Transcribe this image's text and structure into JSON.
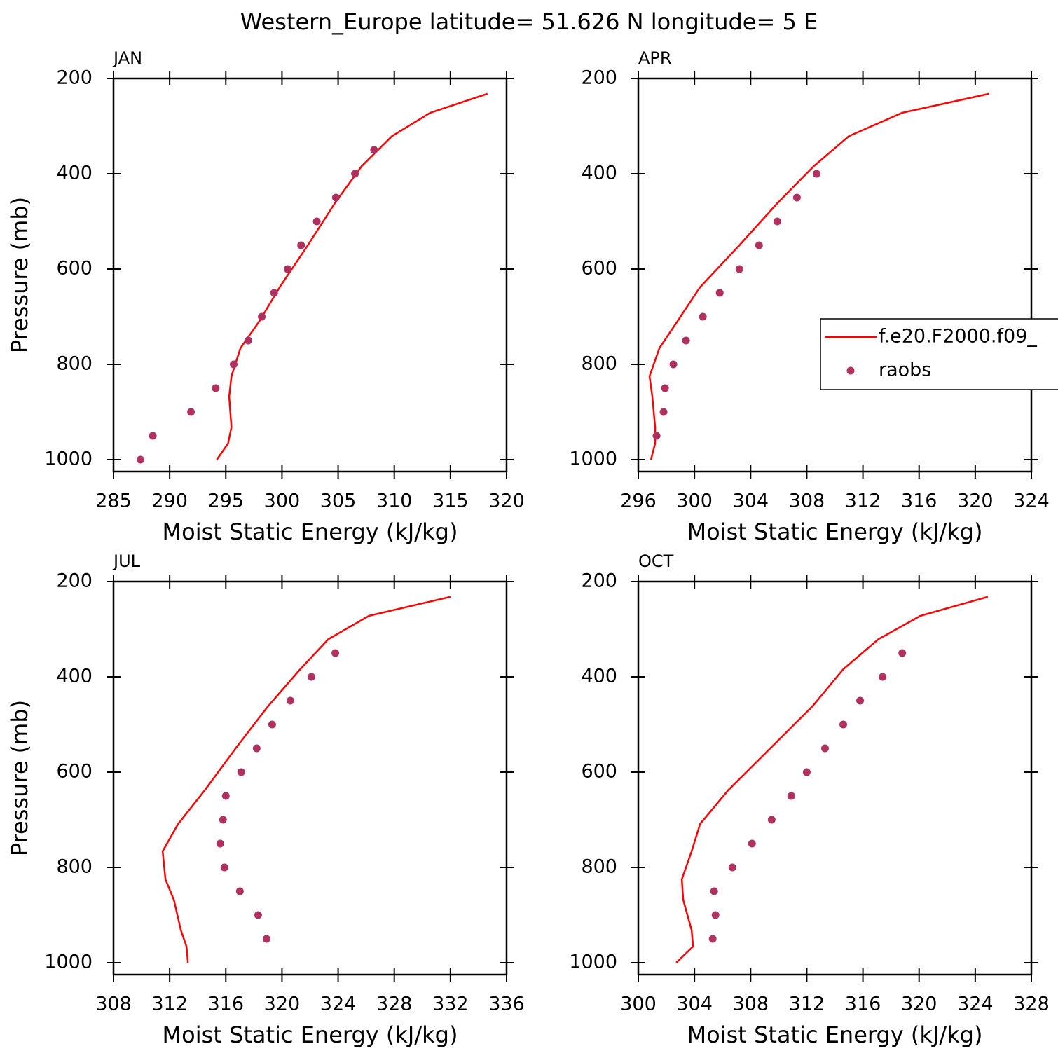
{
  "title": "Western_Europe  latitude= 51.626 N longitude= 5 E",
  "chart_data": [
    {
      "type": "line",
      "panel": "JAN",
      "xlabel": "Moist Static Energy (kJ/kg)",
      "ylabel": "Pressure (mb)",
      "xlim": [
        285,
        320
      ],
      "xticks": [
        285,
        290,
        295,
        300,
        305,
        310,
        315,
        320
      ],
      "ylim": [
        1025,
        200
      ],
      "yticks": [
        200,
        400,
        600,
        800,
        1000
      ],
      "series": [
        {
          "style": "line",
          "color": "#ff0000",
          "values": [
            318.3,
            313.2,
            309.8,
            307.1,
            304.7,
            302.3,
            299.8,
            298.0,
            296.3,
            295.5,
            295.3,
            295.5,
            295.2,
            294.2
          ],
          "y": [
            232,
            272,
            321,
            384,
            462,
            550,
            638,
            709,
            766,
            825,
            868,
            932,
            966,
            1000
          ]
        },
        {
          "style": "markers",
          "color": "#b03060",
          "values": [
            308.2,
            306.5,
            304.8,
            303.1,
            301.7,
            300.5,
            299.3,
            298.2,
            297.0,
            295.7,
            294.1,
            291.9,
            288.5,
            287.4
          ],
          "y": [
            350,
            400,
            450,
            500,
            550,
            600,
            650,
            700,
            750,
            800,
            850,
            900,
            950,
            1000
          ]
        }
      ]
    },
    {
      "type": "line",
      "panel": "APR",
      "xlabel": "Moist Static Energy (kJ/kg)",
      "legend": "right",
      "xlim": [
        296,
        324
      ],
      "xticks": [
        296,
        300,
        304,
        308,
        312,
        316,
        320,
        324
      ],
      "ylim": [
        1025,
        200
      ],
      "yticks": [
        200,
        400,
        600,
        800,
        1000
      ],
      "series": [
        {
          "name": "f.e20.F2000.f09_",
          "style": "line",
          "color": "#ff0000",
          "values": [
            321.0,
            314.8,
            311.0,
            308.5,
            305.9,
            303.2,
            300.4,
            298.8,
            297.5,
            296.8,
            297.0,
            297.2,
            297.2,
            296.9
          ],
          "y": [
            232,
            272,
            321,
            384,
            462,
            550,
            638,
            709,
            766,
            825,
            868,
            932,
            966,
            1000
          ]
        },
        {
          "name": "raobs",
          "style": "markers",
          "color": "#b03060",
          "values": [
            308.7,
            307.3,
            305.9,
            304.6,
            303.2,
            301.8,
            300.6,
            299.4,
            298.5,
            297.9,
            297.8,
            297.3
          ],
          "y": [
            400,
            450,
            500,
            550,
            600,
            650,
            700,
            750,
            800,
            850,
            900,
            950
          ]
        }
      ]
    },
    {
      "type": "line",
      "panel": "JUL",
      "xlabel": "Moist Static Energy (kJ/kg)",
      "ylabel": "Pressure (mb)",
      "xlim": [
        308,
        336
      ],
      "xticks": [
        308,
        312,
        316,
        320,
        324,
        328,
        332,
        336
      ],
      "ylim": [
        1025,
        200
      ],
      "yticks": [
        200,
        400,
        600,
        800,
        1000
      ],
      "series": [
        {
          "style": "line",
          "color": "#ff0000",
          "values": [
            332.0,
            326.2,
            323.3,
            321.3,
            319.0,
            316.7,
            314.5,
            312.6,
            311.5,
            311.7,
            312.3,
            312.8,
            313.2,
            313.3
          ],
          "y": [
            232,
            272,
            321,
            384,
            462,
            550,
            638,
            709,
            766,
            825,
            868,
            932,
            966,
            1000
          ]
        },
        {
          "style": "markers",
          "color": "#b03060",
          "values": [
            323.8,
            322.1,
            320.6,
            319.3,
            318.2,
            317.1,
            316.0,
            315.8,
            315.6,
            315.9,
            317.0,
            318.3,
            318.9
          ],
          "y": [
            350,
            400,
            450,
            500,
            550,
            600,
            650,
            700,
            750,
            800,
            850,
            900,
            950
          ]
        }
      ]
    },
    {
      "type": "line",
      "panel": "OCT",
      "xlabel": "Moist Static Energy (kJ/kg)",
      "xlim": [
        300,
        328
      ],
      "xticks": [
        300,
        304,
        308,
        312,
        316,
        320,
        324,
        328
      ],
      "ylim": [
        1025,
        200
      ],
      "yticks": [
        200,
        400,
        600,
        800,
        1000
      ],
      "series": [
        {
          "style": "line",
          "color": "#ff0000",
          "values": [
            324.9,
            320.1,
            317.1,
            314.6,
            312.4,
            309.4,
            306.4,
            304.4,
            303.8,
            303.1,
            303.2,
            303.8,
            303.9,
            302.7
          ],
          "y": [
            232,
            272,
            321,
            384,
            462,
            550,
            638,
            709,
            766,
            825,
            868,
            932,
            966,
            1000
          ]
        },
        {
          "style": "markers",
          "color": "#b03060",
          "values": [
            318.8,
            317.4,
            315.8,
            314.6,
            313.3,
            312.0,
            310.9,
            309.5,
            308.1,
            306.7,
            305.4,
            305.5,
            305.3
          ],
          "y": [
            350,
            400,
            450,
            500,
            550,
            600,
            650,
            700,
            750,
            800,
            850,
            900,
            950
          ]
        }
      ]
    }
  ]
}
